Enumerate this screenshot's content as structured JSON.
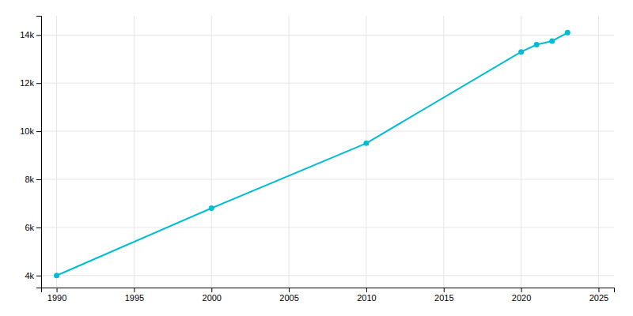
{
  "chart_data": {
    "type": "line",
    "x": [
      1990,
      2000,
      2010,
      2020,
      2021,
      2022,
      2023
    ],
    "values": [
      4000,
      6800,
      9500,
      13300,
      13600,
      13750,
      14100
    ],
    "color": "#00BCD4",
    "marker": "circle",
    "xlim": [
      1989,
      2026
    ],
    "ylim": [
      3500,
      14800
    ],
    "xticks": [
      1990,
      1995,
      2000,
      2005,
      2010,
      2015,
      2020,
      2025
    ],
    "yticks": [
      {
        "value": 4000,
        "label": "4k"
      },
      {
        "value": 6000,
        "label": "6k"
      },
      {
        "value": 8000,
        "label": "8k"
      },
      {
        "value": 10000,
        "label": "10k"
      },
      {
        "value": 12000,
        "label": "12k"
      },
      {
        "value": 14000,
        "label": "14k"
      }
    ],
    "grid": true
  }
}
